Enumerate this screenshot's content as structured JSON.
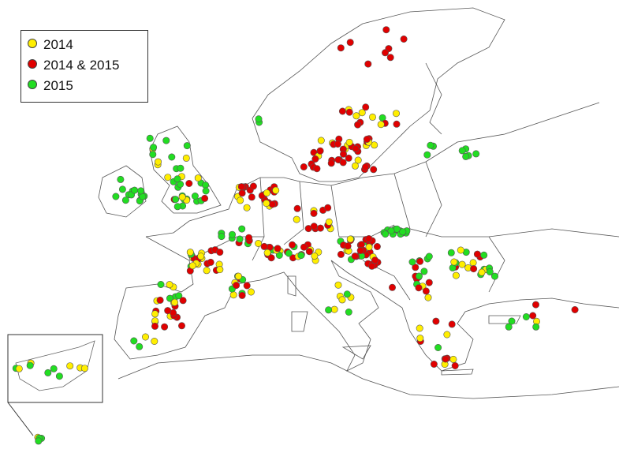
{
  "legend": {
    "items": [
      {
        "label": "2014",
        "color": "#ffee00"
      },
      {
        "label": "2014 & 2015",
        "color": "#e00000"
      },
      {
        "label": "2015",
        "color": "#22dd22"
      }
    ]
  }
}
